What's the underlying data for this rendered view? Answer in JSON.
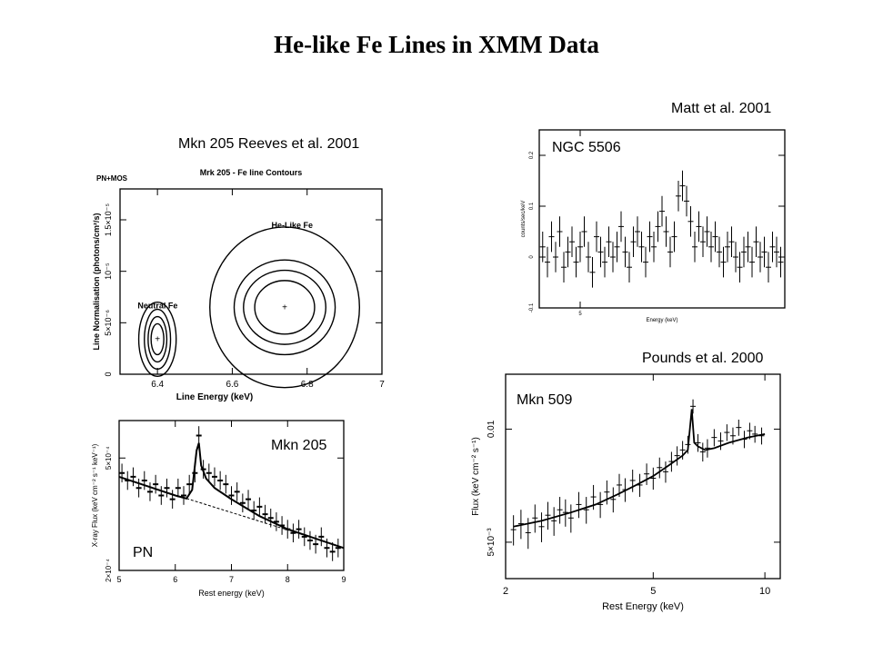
{
  "slide": {
    "title": "He-like Fe Lines in XMM Data"
  },
  "captions": {
    "contour": "Mkn 205  Reeves et al. 2001",
    "ngc": "Matt et al. 2001",
    "mkn509": "Pounds et al.  2000"
  },
  "chart_data": [
    {
      "id": "contour",
      "type": "scatter",
      "title": "Mrk 205 - Fe line Contours",
      "corner_label": "PN+MOS",
      "xlabel": "Line Energy (keV)",
      "ylabel": "Line Normalisation (photons/cm²/s)",
      "xlim": [
        6.3,
        7.0
      ],
      "ylim": [
        0,
        1.8e-05
      ],
      "xticks": [
        6.4,
        6.6,
        6.8,
        7.0
      ],
      "xtick_labels": [
        "6.4",
        "6.6",
        "6.8",
        "7"
      ],
      "yticks": [
        0,
        5e-06,
        1e-05,
        1.5e-05
      ],
      "ytick_labels": [
        "0",
        "5×10⁻⁶",
        "10⁻⁵",
        "1.5×10⁻⁵"
      ],
      "annotations": [
        "Neutral Fe",
        "He-Like Fe"
      ],
      "best_fits": [
        {
          "name": "Neutral Fe",
          "x": 6.4,
          "y": 3.4e-06
        },
        {
          "name": "He-Like Fe",
          "x": 6.74,
          "y": 6.5e-06
        }
      ],
      "contours": [
        {
          "cx": 6.4,
          "cy": 3.4e-06,
          "rx": [
            0.017,
            0.025,
            0.035,
            0.05
          ],
          "ry": [
            1.5e-06,
            2.2e-06,
            2.9e-06,
            3.6e-06
          ]
        },
        {
          "cx": 6.74,
          "cy": 6.5e-06,
          "rx": [
            0.08,
            0.11,
            0.135,
            0.2
          ],
          "ry": [
            2.6e-06,
            3.6e-06,
            4.6e-06,
            7.8e-06
          ]
        }
      ]
    },
    {
      "id": "ngc5506",
      "type": "scatter",
      "label": "NGC 5506",
      "xlabel": "Energy (keV)",
      "ylabel": "counts/sec/keV",
      "xlim": [
        4.4,
        8.0
      ],
      "ylim": [
        -0.1,
        0.25
      ],
      "xticks": [
        5
      ],
      "xtick_labels": [
        "5"
      ],
      "yticks": [
        -0.1,
        0,
        0.1,
        0.2
      ],
      "ytick_labels": [
        "-0.1",
        "0",
        "0.1",
        "0.2"
      ],
      "x": [
        4.45,
        4.52,
        4.58,
        4.64,
        4.7,
        4.76,
        4.82,
        4.88,
        4.94,
        5.0,
        5.06,
        5.12,
        5.18,
        5.24,
        5.3,
        5.36,
        5.42,
        5.48,
        5.54,
        5.6,
        5.66,
        5.72,
        5.78,
        5.84,
        5.9,
        5.96,
        6.02,
        6.08,
        6.14,
        6.2,
        6.26,
        6.32,
        6.38,
        6.44,
        6.5,
        6.56,
        6.62,
        6.68,
        6.74,
        6.8,
        6.86,
        6.92,
        6.98,
        7.04,
        7.1,
        7.16,
        7.22,
        7.28,
        7.34,
        7.4,
        7.46,
        7.52,
        7.58,
        7.64,
        7.7,
        7.76,
        7.82,
        7.88,
        7.94
      ],
      "y": [
        0.02,
        -0.01,
        0.04,
        0.0,
        0.05,
        -0.02,
        0.01,
        0.03,
        -0.01,
        0.02,
        0.05,
        0.0,
        -0.03,
        0.04,
        0.01,
        -0.01,
        0.03,
        0.0,
        0.02,
        0.06,
        0.01,
        -0.02,
        0.03,
        0.05,
        0.02,
        -0.01,
        0.04,
        0.02,
        0.06,
        0.09,
        0.05,
        0.01,
        0.04,
        0.12,
        0.14,
        0.11,
        0.07,
        0.02,
        0.06,
        0.03,
        0.05,
        0.02,
        0.04,
        0.01,
        -0.01,
        0.02,
        0.03,
        0.0,
        -0.02,
        0.01,
        0.02,
        -0.01,
        0.03,
        0.0,
        0.01,
        -0.02,
        0.02,
        0.01,
        -0.01
      ],
      "yerr": 0.03
    },
    {
      "id": "mkn205_pn",
      "type": "line",
      "label": "Mkn 205",
      "instrument_label": "PN",
      "xlabel": "Rest energy (keV)",
      "ylabel": "X-ray Flux (keV cm⁻² s⁻¹ keV⁻¹)",
      "xlim": [
        5,
        9
      ],
      "ylim": [
        0.0002,
        0.0006
      ],
      "xticks": [
        5,
        6,
        7,
        8,
        9
      ],
      "xtick_labels": [
        "5",
        "6",
        "7",
        "8",
        "9"
      ],
      "yticks": [
        0.0002,
        0.0005
      ],
      "ytick_labels": [
        "2×10⁻⁴",
        "5×10⁻⁴"
      ],
      "x": [
        5.05,
        5.15,
        5.25,
        5.35,
        5.45,
        5.55,
        5.65,
        5.75,
        5.85,
        5.95,
        6.05,
        6.15,
        6.25,
        6.35,
        6.42,
        6.5,
        6.6,
        6.7,
        6.8,
        6.9,
        7.0,
        7.1,
        7.2,
        7.3,
        7.4,
        7.5,
        7.6,
        7.7,
        7.8,
        7.9,
        8.0,
        8.1,
        8.2,
        8.3,
        8.4,
        8.5,
        8.6,
        8.7,
        8.8,
        8.9
      ],
      "y": [
        0.00046,
        0.00044,
        0.00045,
        0.00042,
        0.00044,
        0.00041,
        0.00043,
        0.0004,
        0.00042,
        0.00039,
        0.00042,
        0.0004,
        0.00043,
        0.00046,
        0.00056,
        0.00047,
        0.00046,
        0.00045,
        0.00044,
        0.00043,
        0.0004,
        0.00041,
        0.00038,
        0.00039,
        0.00036,
        0.00037,
        0.00035,
        0.00034,
        0.00033,
        0.00032,
        0.00031,
        0.0003,
        0.00031,
        0.00029,
        0.00028,
        0.00027,
        0.00029,
        0.00026,
        0.00025,
        0.00026
      ],
      "yerr": 2.5e-05,
      "model_x": [
        5.0,
        5.5,
        6.0,
        6.2,
        6.3,
        6.38,
        6.42,
        6.46,
        6.55,
        6.7,
        7.0,
        7.5,
        8.0,
        8.5,
        9.0
      ],
      "model_y": [
        0.00045,
        0.000425,
        0.0004,
        0.000392,
        0.000415,
        0.00052,
        0.00054,
        0.00048,
        0.000445,
        0.00042,
        0.00039,
        0.000345,
        0.00031,
        0.000285,
        0.00026
      ],
      "continuum_x": [
        6.2,
        8.6
      ],
      "continuum_y": [
        0.000392,
        0.00028
      ]
    },
    {
      "id": "mkn509",
      "type": "line",
      "label": "Mkn 509",
      "xlabel": "Rest Energy (keV)",
      "ylabel": "Flux (keV cm⁻² s⁻¹)",
      "xscale": "log",
      "yscale": "log",
      "xlim": [
        2,
        11
      ],
      "ylim": [
        0.004,
        0.014
      ],
      "xticks": [
        2,
        5,
        10
      ],
      "xtick_labels": [
        "2",
        "5",
        "10"
      ],
      "yticks": [
        0.005,
        0.01
      ],
      "ytick_labels": [
        "5×10⁻³",
        "0.01"
      ],
      "x": [
        2.1,
        2.2,
        2.3,
        2.4,
        2.5,
        2.6,
        2.7,
        2.8,
        2.9,
        3.0,
        3.15,
        3.3,
        3.45,
        3.6,
        3.75,
        3.9,
        4.05,
        4.2,
        4.4,
        4.6,
        4.8,
        5.0,
        5.2,
        5.4,
        5.6,
        5.8,
        6.0,
        6.2,
        6.4,
        6.6,
        6.8,
        7.0,
        7.3,
        7.6,
        7.9,
        8.2,
        8.5,
        8.8,
        9.1,
        9.4,
        9.8
      ],
      "y": [
        0.0054,
        0.0056,
        0.0053,
        0.0058,
        0.0055,
        0.0059,
        0.0057,
        0.0061,
        0.006,
        0.0058,
        0.0063,
        0.0061,
        0.0066,
        0.0063,
        0.0068,
        0.0065,
        0.0071,
        0.0069,
        0.0073,
        0.0071,
        0.0076,
        0.0074,
        0.0079,
        0.0077,
        0.0082,
        0.0085,
        0.0088,
        0.0091,
        0.0115,
        0.0092,
        0.0087,
        0.0089,
        0.0095,
        0.0093,
        0.0098,
        0.0096,
        0.0101,
        0.0094,
        0.0099,
        0.0097,
        0.0096
      ],
      "yerr": 0.0005,
      "model_x": [
        2.1,
        2.5,
        3.0,
        3.5,
        4.0,
        4.5,
        5.0,
        5.5,
        6.0,
        6.2,
        6.35,
        6.45,
        6.6,
        6.9,
        7.3,
        8.0,
        9.0,
        10.0
      ],
      "model_y": [
        0.0055,
        0.0057,
        0.006,
        0.0063,
        0.0067,
        0.0071,
        0.0075,
        0.008,
        0.0085,
        0.0088,
        0.0113,
        0.0092,
        0.009,
        0.0088,
        0.0089,
        0.0092,
        0.0095,
        0.0097
      ]
    }
  ]
}
